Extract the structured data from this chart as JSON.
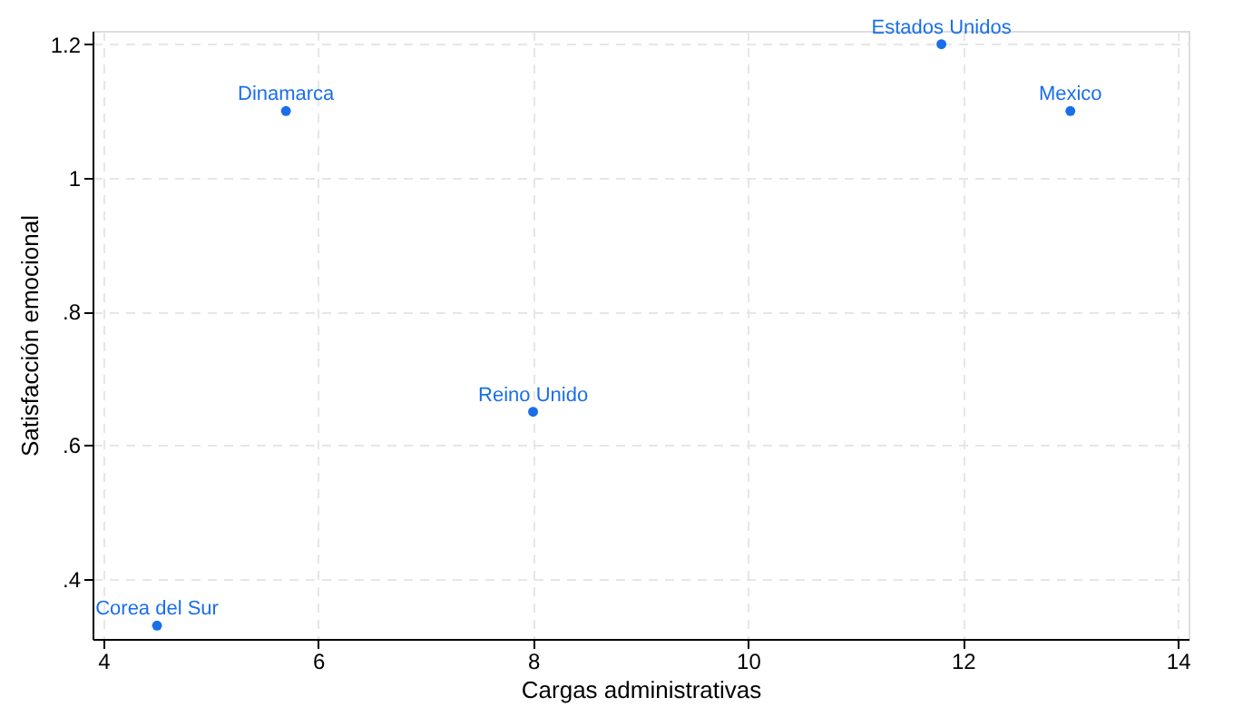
{
  "chart_data": {
    "type": "scatter",
    "xlabel": "Cargas administrativas",
    "ylabel": "Satisfacción emocional",
    "x": [
      4.5,
      5.7,
      8.0,
      11.8,
      13.0
    ],
    "series": [
      {
        "color": "#1a6fe8",
        "values": [
          0.33,
          1.1,
          0.65,
          1.2,
          1.1
        ]
      }
    ],
    "annotations": [
      {
        "text": "Corea del Sur",
        "x": 4.5,
        "y": 0.33
      },
      {
        "text": "Dinamarca",
        "x": 5.7,
        "y": 1.1
      },
      {
        "text": "Reino Unido",
        "x": 8.0,
        "y": 0.65
      },
      {
        "text": "Estados Unidos",
        "x": 11.8,
        "y": 1.2
      },
      {
        "text": "Mexico",
        "x": 13.0,
        "y": 1.1
      }
    ],
    "xlim": [
      3.9,
      14.1
    ],
    "ylim": [
      0.31,
      1.22
    ],
    "xticks": [
      4,
      6,
      8,
      10,
      12,
      14
    ],
    "yticks": [
      {
        "value": 0.4,
        "label": ".4"
      },
      {
        "value": 0.6,
        "label": ".6"
      },
      {
        "value": 0.8,
        "label": ".8"
      },
      {
        "value": 1,
        "label": "1"
      },
      {
        "value": 1.2,
        "label": "1.2"
      }
    ],
    "grid": true,
    "marker": "circle",
    "legend": false
  }
}
